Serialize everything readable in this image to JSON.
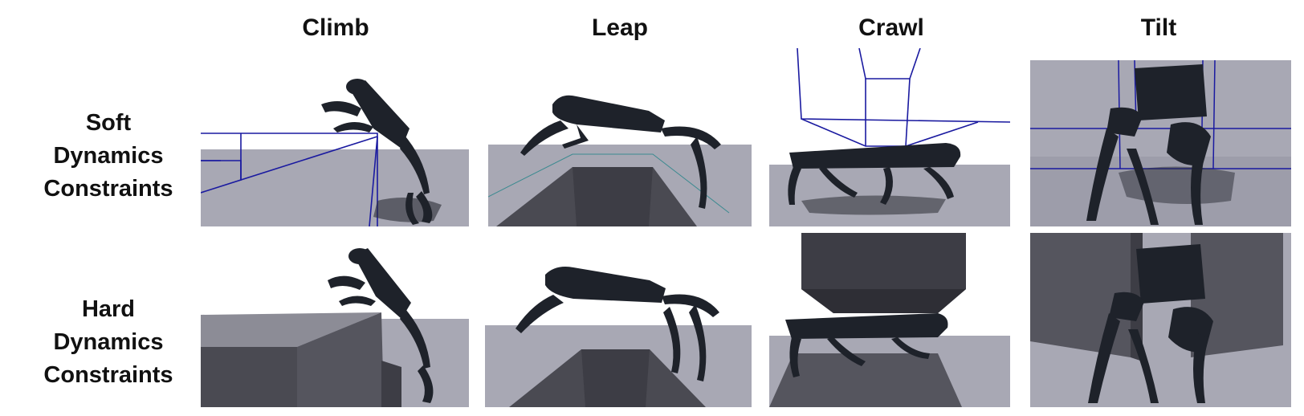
{
  "columns": [
    {
      "label": "Climb"
    },
    {
      "label": "Leap"
    },
    {
      "label": "Crawl"
    },
    {
      "label": "Tilt"
    }
  ],
  "rows": [
    {
      "lines": [
        "Soft",
        "Dynamics",
        "Constraints"
      ]
    },
    {
      "lines": [
        "Hard",
        "Dynamics",
        "Constraints"
      ]
    }
  ],
  "colors": {
    "floor": "#a8a8b4",
    "obstacle": "#4a4a52",
    "wire": "#1a1aa0",
    "robot": "#1e222a"
  }
}
